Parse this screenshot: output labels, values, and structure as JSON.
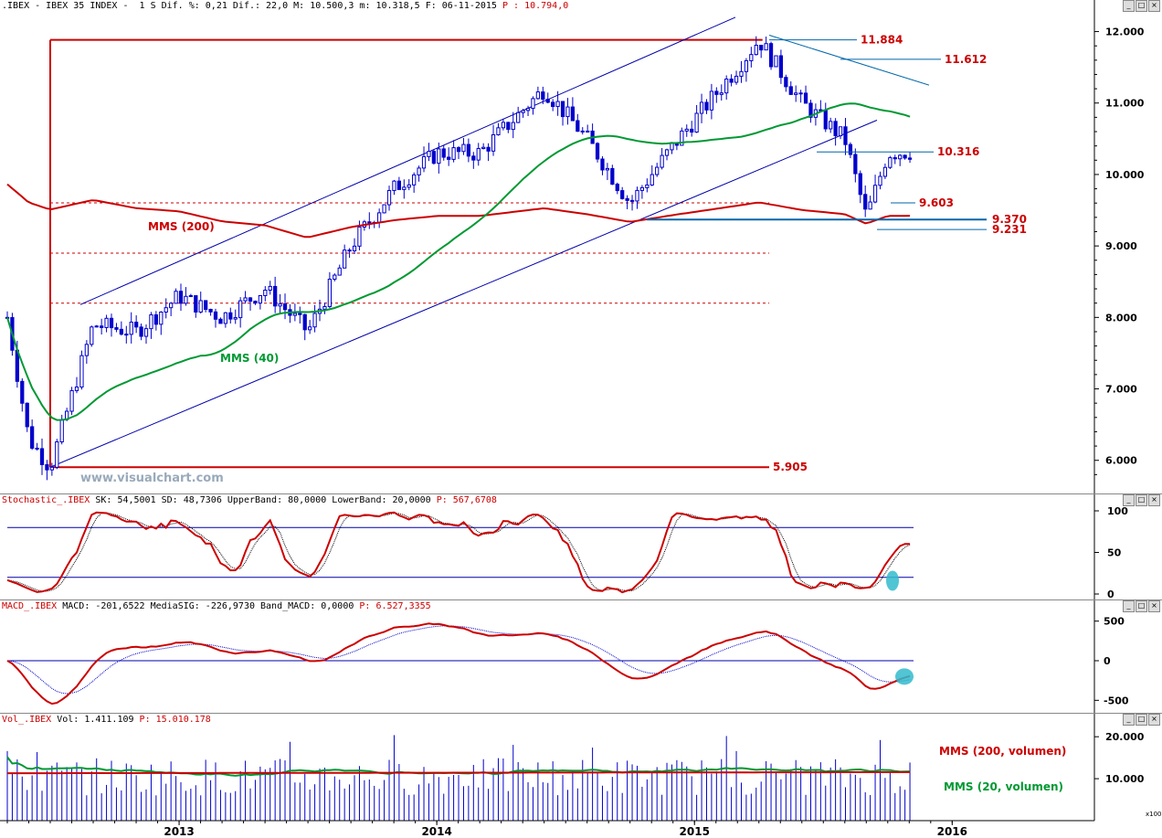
{
  "main_header": {
    "symbol": ".IBEX - IBEX 35 INDEX -",
    "period": "1 S",
    "dif_pct": "Dif. %: 0,21",
    "dif": "Dif.: 22,0",
    "max": "M: 10.500,3",
    "min": "m: 10.318,5",
    "date": "F: 06-11-2015",
    "price": "P : 10.794,0"
  },
  "window_controls": {
    "minimize": "_",
    "maximize": "□",
    "close": "×"
  },
  "watermark": "www.visualchart.com",
  "price_chart": {
    "y_ticks": [
      "12.000",
      "11.000",
      "10.000",
      "9.000",
      "8.000",
      "7.000",
      "6.000"
    ],
    "y_values": [
      12000,
      11000,
      10000,
      9000,
      8000,
      7000,
      6000
    ],
    "annotations": [
      {
        "label": "11.884",
        "value": 11884
      },
      {
        "label": "11.612",
        "value": 11612
      },
      {
        "label": "10.316",
        "value": 10316
      },
      {
        "label": "9.603",
        "value": 9603
      },
      {
        "label": "9.370",
        "value": 9370
      },
      {
        "label": "9.231",
        "value": 9231
      },
      {
        "label": "5.905",
        "value": 5905
      }
    ],
    "ma_labels": {
      "ma200": "MMS (200)",
      "ma40": "MMS (40)"
    },
    "colors": {
      "candle": "#0000cc",
      "ma200": "#cc0000",
      "ma40": "#009933",
      "channel": "#0000aa",
      "levels": "#cc0000",
      "annot_blue": "#0066aa"
    }
  },
  "stochastic": {
    "header": {
      "name": "Stochastic_.IBEX",
      "sk": "SK: 54,5001",
      "sd": "SD: 48,7306",
      "upper": "UpperBand: 80,0000",
      "lower": "LowerBand: 20,0000",
      "p": "P: 567,6708"
    },
    "y_ticks": [
      "100",
      "50",
      "0"
    ],
    "upper_band": 80,
    "lower_band": 20
  },
  "macd": {
    "header": {
      "name": "MACD_.IBEX",
      "macd": "MACD: -201,6522",
      "signal": "MediaSIG: -226,9730",
      "band": "Band_MACD: 0,0000",
      "p": "P: 6.527,3355"
    },
    "y_ticks": [
      "500",
      "0",
      "-500"
    ]
  },
  "volume": {
    "header": {
      "name": "Vol_.IBEX",
      "vol": "Vol: 1.411.109",
      "p": "P: 15.010.178"
    },
    "y_ticks": [
      "20.000",
      "10.000"
    ],
    "unit": "x100",
    "labels": {
      "ma200": "MMS (200, volumen)",
      "ma20": "MMS (20, volumen)"
    }
  },
  "x_axis": {
    "labels": [
      "2013",
      "2014",
      "2015",
      "2016"
    ]
  },
  "chart_data": {
    "type": "candlestick",
    "frequency": "weekly",
    "title": ".IBEX - IBEX 35 INDEX",
    "y_range": [
      5600,
      12250
    ],
    "key_levels": [
      11884,
      11612,
      10316,
      9603,
      9370,
      9231,
      5905
    ],
    "approx_close_path": [
      {
        "x": "2012-05",
        "y": 8000
      },
      {
        "x": "2012-06",
        "y": 6300
      },
      {
        "x": "2012-07",
        "y": 5905
      },
      {
        "x": "2012-09",
        "y": 7900
      },
      {
        "x": "2012-11",
        "y": 7800
      },
      {
        "x": "2013-01",
        "y": 8300
      },
      {
        "x": "2013-03",
        "y": 8000
      },
      {
        "x": "2013-05",
        "y": 8400
      },
      {
        "x": "2013-07",
        "y": 7800
      },
      {
        "x": "2013-09",
        "y": 9000
      },
      {
        "x": "2013-11",
        "y": 9800
      },
      {
        "x": "2014-01",
        "y": 10300
      },
      {
        "x": "2014-03",
        "y": 10300
      },
      {
        "x": "2014-06",
        "y": 11200
      },
      {
        "x": "2014-08",
        "y": 10500
      },
      {
        "x": "2014-10",
        "y": 9600
      },
      {
        "x": "2014-12",
        "y": 10400
      },
      {
        "x": "2015-03",
        "y": 11500
      },
      {
        "x": "2015-04",
        "y": 11884
      },
      {
        "x": "2015-06",
        "y": 11000
      },
      {
        "x": "2015-08",
        "y": 10500
      },
      {
        "x": "2015-09",
        "y": 9400
      },
      {
        "x": "2015-10",
        "y": 10300
      },
      {
        "x": "2015-11",
        "y": 10318
      }
    ],
    "indicators": {
      "stochastic": {
        "sk": 54.5001,
        "sd": 48.7306,
        "upper": 80,
        "lower": 20
      },
      "macd": {
        "macd": -201.6522,
        "signal": -226.973,
        "band": 0
      },
      "volume": {
        "last": 1411109
      }
    }
  }
}
